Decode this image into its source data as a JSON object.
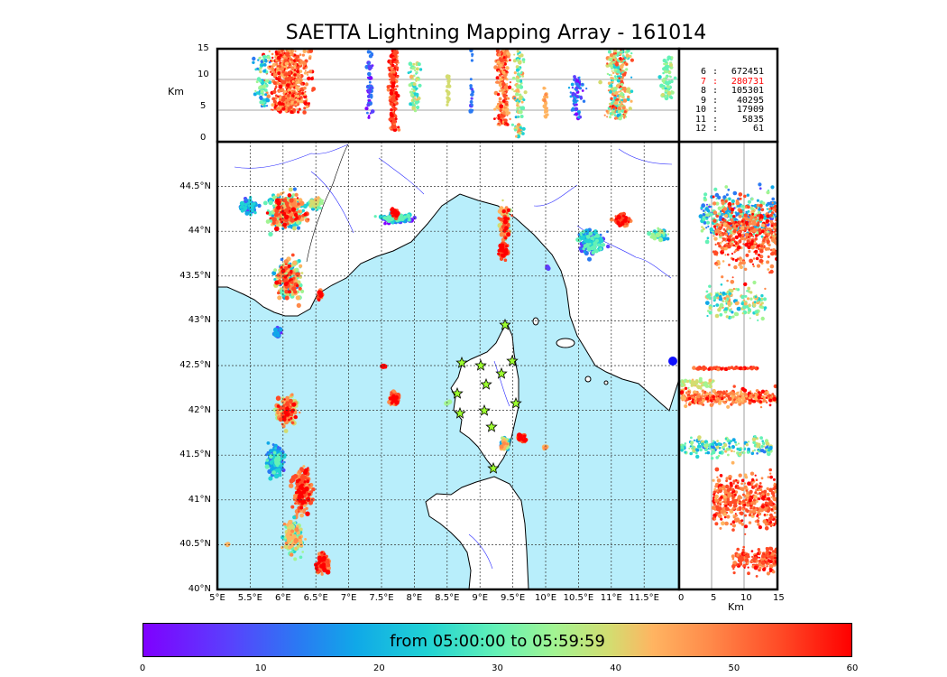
{
  "title": "SAETTA Lightning Mapping Array - 161014",
  "main_map": {
    "lat_ticks": [
      "44.5°N",
      "44°N",
      "43.5°N",
      "43°N",
      "42.5°N",
      "42°N",
      "41.5°N",
      "41°N",
      "40.5°N",
      "40°N"
    ],
    "lon_ticks": [
      "5°E",
      "5.5°E",
      "6°E",
      "6.5°E",
      "7°E",
      "7.5°E",
      "8°E",
      "8.5°E",
      "9°E",
      "9.5°E",
      "10°E",
      "10.5°E",
      "11°E",
      "11.5°E"
    ],
    "sea_color": "#b8eefb",
    "land_color": "#ffffff"
  },
  "altitude_lon_panel": {
    "y_ticks": [
      "15",
      "10",
      "5",
      "0"
    ],
    "y_label": "Km"
  },
  "altitude_lat_panel": {
    "x_ticks": [
      "0",
      "5",
      "10",
      "15"
    ],
    "x_label": "Km"
  },
  "altitude_counts": [
    {
      "level": "6",
      "sep": ":",
      "value": "672451",
      "color": "#000000"
    },
    {
      "level": "7",
      "sep": ":",
      "value": "280731",
      "color": "#ff0000"
    },
    {
      "level": "8",
      "sep": ":",
      "value": "105301",
      "color": "#000000"
    },
    {
      "level": "9",
      "sep": ":",
      "value": "40295",
      "color": "#000000"
    },
    {
      "level": "10",
      "sep": ":",
      "value": "17909",
      "color": "#000000"
    },
    {
      "level": "11",
      "sep": ":",
      "value": "5835",
      "color": "#000000"
    },
    {
      "level": "12",
      "sep": ":",
      "value": "61",
      "color": "#000000"
    }
  ],
  "colorbar": {
    "caption": "from 05:00:00 to 05:59:59",
    "ticks": [
      "0",
      "10",
      "20",
      "30",
      "40",
      "50",
      "60"
    ]
  },
  "station_icon": "star-icon",
  "station_count": 12
}
